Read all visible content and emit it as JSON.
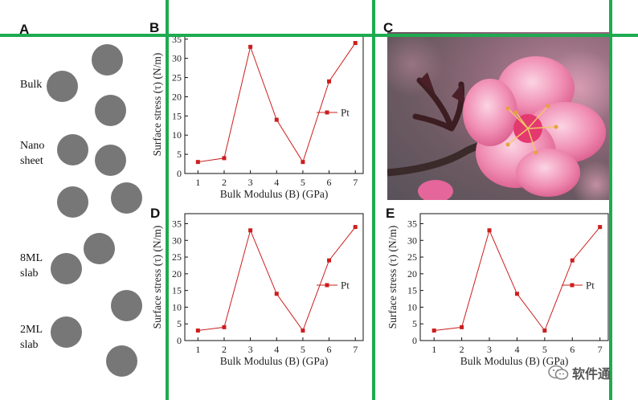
{
  "panel_labels": {
    "a": "A",
    "b": "B",
    "c": "C",
    "d": "D",
    "e": "E"
  },
  "sidebar": {
    "labels": [
      {
        "id": "bulk",
        "lines": [
          "Bulk"
        ]
      },
      {
        "id": "nanosheet",
        "lines": [
          "Nano",
          "sheet"
        ]
      },
      {
        "id": "8ml",
        "lines": [
          "8ML",
          "slab"
        ]
      },
      {
        "id": "2ml",
        "lines": [
          "2ML",
          "slab"
        ]
      }
    ]
  },
  "colors": {
    "grid_line": "#1faa50",
    "series": "#cc1e1e",
    "ball": "#777777"
  },
  "watermark": {
    "icon": "wechat-icon",
    "text": "软件通"
  },
  "photo": {
    "description_icon": "peach-blossom-photo"
  },
  "chart_data": [
    {
      "id": "B",
      "type": "line",
      "x": [
        1,
        2,
        3,
        4,
        5,
        6,
        7
      ],
      "series": [
        {
          "name": "Pt",
          "values": [
            3,
            4,
            33,
            14,
            3,
            24,
            34
          ]
        }
      ],
      "xlabel": "Bulk Modulus (B) (GPa)",
      "ylabel": "Surface stress (τ) (N/m)",
      "xlim": [
        0.5,
        7.3
      ],
      "ylim": [
        0,
        36
      ],
      "xticks": [
        1,
        2,
        3,
        4,
        5,
        6,
        7
      ],
      "yticks": [
        0,
        5,
        10,
        15,
        20,
        25,
        30,
        35
      ],
      "legend": "right",
      "grid": false
    },
    {
      "id": "D",
      "type": "line",
      "x": [
        1,
        2,
        3,
        4,
        5,
        6,
        7
      ],
      "series": [
        {
          "name": "Pt",
          "values": [
            3,
            4,
            33,
            14,
            3,
            24,
            34
          ]
        }
      ],
      "xlabel": "Bulk Modulus (B) (GPa)",
      "ylabel": "Surface stress (τ) (N/m)",
      "xlim": [
        0.5,
        7.3
      ],
      "ylim": [
        0,
        38
      ],
      "xticks": [
        1,
        2,
        3,
        4,
        5,
        6,
        7
      ],
      "yticks": [
        0,
        5,
        10,
        15,
        20,
        25,
        30,
        35
      ],
      "legend": "right",
      "grid": false
    },
    {
      "id": "E",
      "type": "line",
      "x": [
        1,
        2,
        3,
        4,
        5,
        6,
        7
      ],
      "series": [
        {
          "name": "Pt",
          "values": [
            3,
            4,
            33,
            14,
            3,
            24,
            34
          ]
        }
      ],
      "xlabel": "Bulk Modulus (B) (GPa)",
      "ylabel": "Surface stress (τ) (N/m)",
      "xlim": [
        0.5,
        7.3
      ],
      "ylim": [
        0,
        38
      ],
      "xticks": [
        1,
        2,
        3,
        4,
        5,
        6,
        7
      ],
      "yticks": [
        0,
        5,
        10,
        15,
        20,
        25,
        30,
        35
      ],
      "legend": "right",
      "grid": false
    }
  ]
}
